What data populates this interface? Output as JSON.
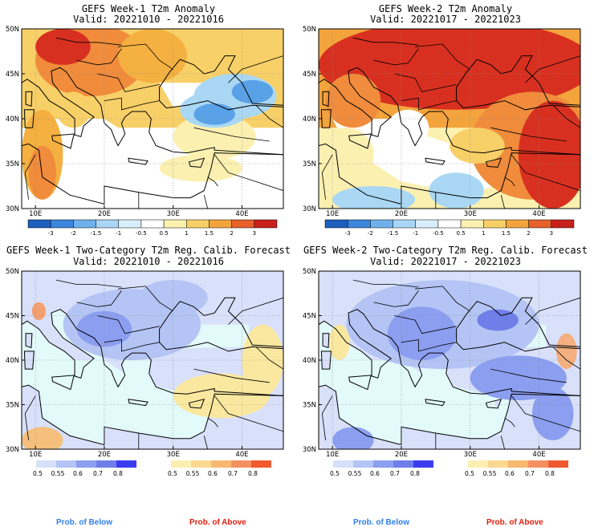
{
  "panels": [
    {
      "title": "GEFS Week-1 T2m Anomaly",
      "valid": "Valid: 20221010 - 20221016",
      "type": "anomaly",
      "lon_ticks": [
        "10E",
        "20E",
        "30E",
        "40E"
      ],
      "lat_ticks": [
        "50N",
        "45N",
        "40N",
        "35N",
        "30N"
      ],
      "fields": [
        {
          "shape": "ellipse",
          "lon": 18,
          "lat": 46.5,
          "rlon": 8,
          "rlat": 4,
          "color": "#f08c3c"
        },
        {
          "shape": "ellipse",
          "lon": 14,
          "lat": 48,
          "rlon": 4,
          "rlat": 2,
          "color": "#d83020"
        },
        {
          "shape": "ellipse",
          "lon": 27,
          "lat": 47,
          "rlon": 5,
          "rlat": 3,
          "color": "#f4b040"
        },
        {
          "shape": "ellipse",
          "lon": 11,
          "lat": 36,
          "rlon": 3,
          "rlat": 5,
          "color": "#f4b040"
        },
        {
          "shape": "ellipse",
          "lon": 11,
          "lat": 34,
          "rlon": 2,
          "rlat": 3,
          "color": "#f08c3c"
        },
        {
          "shape": "ellipse",
          "lon": 15.5,
          "lat": 41,
          "rlon": 2.5,
          "rlat": 2,
          "color": "#f8d068"
        },
        {
          "shape": "ellipse",
          "lon": 36,
          "lat": 38,
          "rlon": 6,
          "rlat": 2.5,
          "color": "#fbf0b0"
        },
        {
          "shape": "ellipse",
          "lon": 39,
          "lat": 42.5,
          "rlon": 6,
          "rlat": 2.5,
          "color": "#aad8f4"
        },
        {
          "shape": "ellipse",
          "lon": 36,
          "lat": 41,
          "rlon": 5,
          "rlat": 2,
          "color": "#aad8f4"
        },
        {
          "shape": "ellipse",
          "lon": 36,
          "lat": 40.5,
          "rlon": 3,
          "rlat": 1.2,
          "color": "#5aa2e8"
        },
        {
          "shape": "ellipse",
          "lon": 41.5,
          "lat": 43,
          "rlon": 3,
          "rlat": 1.3,
          "color": "#5aa2e8"
        },
        {
          "shape": "ellipse",
          "lon": 34,
          "lat": 34.5,
          "rlon": 6,
          "rlat": 1.5,
          "color": "#fbf0b0"
        }
      ],
      "legend": {
        "labels": [
          "-3",
          "-2",
          "-1.5",
          "-1",
          "-0.5",
          "0.5",
          "1",
          "1.5",
          "2",
          "3"
        ]
      }
    },
    {
      "title": "GEFS Week-2 T2m Anomaly",
      "valid": "Valid: 20221017 - 20221023",
      "type": "anomaly",
      "lon_ticks": [
        "10E",
        "20E",
        "30E",
        "40E"
      ],
      "lat_ticks": [
        "50N",
        "45N",
        "40N",
        "35N",
        "30N"
      ],
      "fields": [
        {
          "shape": "ellipse",
          "lon": 28,
          "lat": 46,
          "rlon": 20,
          "rlat": 5,
          "color": "#d83020"
        },
        {
          "shape": "ellipse",
          "lon": 13,
          "lat": 42,
          "rlon": 4,
          "rlat": 3,
          "color": "#f08c3c"
        },
        {
          "shape": "ellipse",
          "lon": 39,
          "lat": 37,
          "rlon": 9,
          "rlat": 6,
          "color": "#f08c3c"
        },
        {
          "shape": "ellipse",
          "lon": 42,
          "lat": 36,
          "rlon": 5,
          "rlat": 6,
          "color": "#d83020"
        },
        {
          "shape": "ellipse",
          "lon": 12,
          "lat": 36,
          "rlon": 4,
          "rlat": 3,
          "color": "#fbf0b0"
        },
        {
          "shape": "ellipse",
          "lon": 31,
          "lat": 37,
          "rlon": 4,
          "rlat": 2,
          "color": "#f8d068"
        },
        {
          "shape": "ellipse",
          "lon": 16,
          "lat": 31,
          "rlon": 6,
          "rlat": 1.5,
          "color": "#aad8f4"
        },
        {
          "shape": "ellipse",
          "lon": 28,
          "lat": 32,
          "rlon": 4,
          "rlat": 2,
          "color": "#aad8f4"
        },
        {
          "shape": "ellipse",
          "lon": 21,
          "lat": 39,
          "rlon": 3,
          "rlat": 2,
          "color": "#ffffff"
        }
      ],
      "legend": {
        "labels": [
          "-3",
          "-2",
          "-1.5",
          "-1",
          "-0.5",
          "0.5",
          "1",
          "1.5",
          "2",
          "3"
        ]
      }
    },
    {
      "title": "GEFS Week-1 Two-Category T2m Reg. Calib. Forecast",
      "valid": "Valid: 20221010 - 20221016",
      "type": "prob",
      "lon_ticks": [
        "10E",
        "20E",
        "30E",
        "40E"
      ],
      "lat_ticks": [
        "50N",
        "45N",
        "40N",
        "35N",
        "30N"
      ],
      "fields": [
        {
          "shape": "ellipse",
          "lon": 24,
          "lat": 44,
          "rlon": 10,
          "rlat": 4,
          "color": "#b4c4f4"
        },
        {
          "shape": "ellipse",
          "lon": 20,
          "lat": 43.5,
          "rlon": 4,
          "rlat": 2,
          "color": "#8c9ef0"
        },
        {
          "shape": "ellipse",
          "lon": 37,
          "lat": 36,
          "rlon": 7,
          "rlat": 2.5,
          "color": "#fbe8a0"
        },
        {
          "shape": "ellipse",
          "lon": 43,
          "lat": 40,
          "rlon": 3,
          "rlat": 4,
          "color": "#fbe8a0"
        },
        {
          "shape": "ellipse",
          "lon": 11,
          "lat": 31,
          "rlon": 3,
          "rlat": 1.5,
          "color": "#f4c07c"
        },
        {
          "shape": "ellipse",
          "lon": 10.5,
          "lat": 45.5,
          "rlon": 1,
          "rlat": 1,
          "color": "#f4a070"
        },
        {
          "shape": "ellipse",
          "lon": 30,
          "lat": 47,
          "rlon": 5,
          "rlat": 2,
          "color": "#b4c4f4"
        }
      ],
      "legend": {
        "below": [
          "0.5",
          "0.55",
          "0.6",
          "0.7",
          "0.8"
        ],
        "above": [
          "0.5",
          "0.55",
          "0.6",
          "0.7",
          "0.8"
        ]
      }
    },
    {
      "title": "GEFS Week-2 Two-Category T2m Reg. Calib. Forecast",
      "valid": "Valid: 20221017 - 20221023",
      "type": "prob",
      "lon_ticks": [
        "10E",
        "20E",
        "30E",
        "40E"
      ],
      "lat_ticks": [
        "50N",
        "45N",
        "40N",
        "35N",
        "30N"
      ],
      "fields": [
        {
          "shape": "ellipse",
          "lon": 26,
          "lat": 44,
          "rlon": 14,
          "rlat": 5,
          "color": "#b4c4f4"
        },
        {
          "shape": "ellipse",
          "lon": 23,
          "lat": 43,
          "rlon": 5,
          "rlat": 3,
          "color": "#8c9ef0"
        },
        {
          "shape": "ellipse",
          "lon": 34,
          "lat": 44.5,
          "rlon": 3,
          "rlat": 1.2,
          "color": "#6f7ee8"
        },
        {
          "shape": "ellipse",
          "lon": 37,
          "lat": 38,
          "rlon": 7,
          "rlat": 2.5,
          "color": "#8c9ef0"
        },
        {
          "shape": "ellipse",
          "lon": 42,
          "lat": 34,
          "rlon": 3,
          "rlat": 3,
          "color": "#8c9ef0"
        },
        {
          "shape": "ellipse",
          "lon": 13,
          "lat": 31,
          "rlon": 3,
          "rlat": 1.5,
          "color": "#8c9ef0"
        },
        {
          "shape": "ellipse",
          "lon": 44,
          "lat": 41,
          "rlon": 1.5,
          "rlat": 2,
          "color": "#f4b080"
        },
        {
          "shape": "ellipse",
          "lon": 11,
          "lat": 42,
          "rlon": 1.5,
          "rlat": 2,
          "color": "#fbe8a0"
        }
      ],
      "legend": {
        "below": [
          "0.5",
          "0.55",
          "0.6",
          "0.7",
          "0.8"
        ],
        "above": [
          "0.5",
          "0.55",
          "0.6",
          "0.7",
          "0.8"
        ]
      }
    }
  ],
  "anomaly_colors": [
    "#1e5ebc",
    "#3b86dc",
    "#6fb0ec",
    "#a9d6f6",
    "#d9eefb",
    "#ffffff",
    "#fbf0b0",
    "#f8d068",
    "#f4a43c",
    "#e8602a",
    "#c8201a"
  ],
  "below_colors": [
    "#d8e0fa",
    "#b4c4f4",
    "#8c9ef0",
    "#6f7ee8",
    "#3b3cf0"
  ],
  "above_colors": [
    "#fcefb0",
    "#fbd890",
    "#f8b870",
    "#f49060",
    "#f05a30"
  ],
  "prob_labels": {
    "below": "Prob. of Below",
    "above": "Prob. of Above"
  },
  "colors": {
    "below": "#2f7fe8",
    "above": "#e02010",
    "sea_prob": "#e2fafa",
    "land_prob": "#d8e0fa",
    "sea_anom": "#ffffff"
  }
}
